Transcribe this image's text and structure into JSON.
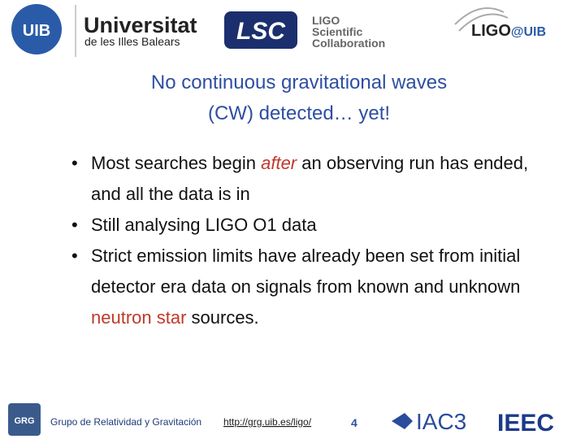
{
  "header": {
    "uib_logo": "UIB",
    "university_name": "Universitat",
    "university_subtitle": "de les Illes Balears",
    "lsc_logo": "LSC",
    "lsc_lines": [
      "LIGO",
      "Scientific",
      "Collaboration"
    ],
    "ligo_uib": [
      "LIGO",
      "@UIB"
    ]
  },
  "title": {
    "lines": [
      "No continuous gravitational waves",
      "(CW) detected… yet!"
    ]
  },
  "bullets": [
    [
      {
        "text": "Most searches begin "
      },
      {
        "text": "after",
        "style": "emphasis"
      },
      {
        "text": " an observing run has ended, and all the data is in"
      }
    ],
    [
      {
        "text": "Still analysing LIGO O1 data"
      }
    ],
    [
      {
        "text": "Strict emission limits have already been set from initial detector era data on signals from known and unknown "
      },
      {
        "text": "neutron star",
        "style": "highlight"
      },
      {
        "text": " sources."
      }
    ]
  ],
  "footer": {
    "grg_logo": "GRG",
    "group_name": "Grupo de Relatividad y Gravitación",
    "url": "http://grg.uib.es/ligo/",
    "page_number": "4",
    "iac3_logo": "IAC3",
    "ieec_logo": "IEEC"
  }
}
